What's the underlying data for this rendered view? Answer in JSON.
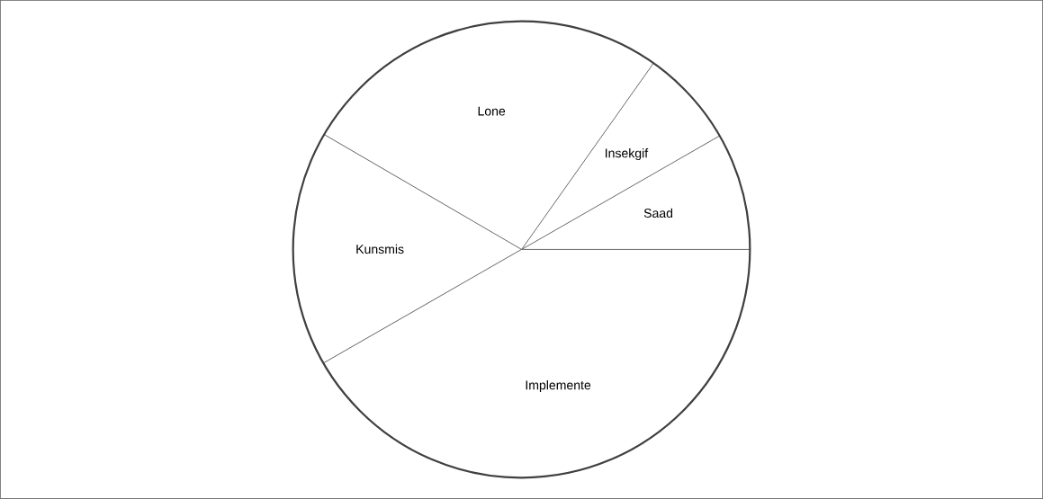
{
  "chart_data": {
    "type": "pie",
    "categories": [
      "Saad",
      "Insekgif",
      "Lone",
      "Kunsmis",
      "Implemente"
    ],
    "values": [
      8.3,
      6.9,
      26.4,
      16.7,
      41.7
    ],
    "colors": [
      "#ffffff",
      "#ffffff",
      "#ffffff",
      "#ffffff",
      "#ffffff"
    ]
  }
}
